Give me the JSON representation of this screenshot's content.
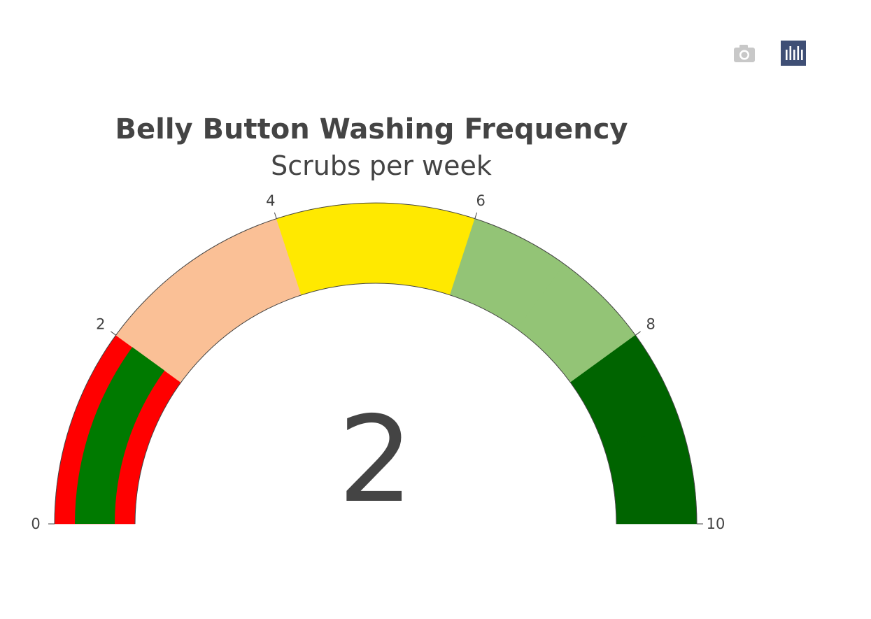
{
  "chart_data": {
    "type": "gauge",
    "title": "Belly Button Washing Frequency",
    "subtitle": "Scrubs per week",
    "value": 2,
    "value_label": "2",
    "range": [
      0,
      10
    ],
    "tick_labels": [
      "0",
      "2",
      "4",
      "6",
      "8",
      "10"
    ],
    "tick_values": [
      0,
      2,
      4,
      6,
      8,
      10
    ],
    "steps": [
      {
        "range": [
          0,
          1
        ],
        "color": "#ff0000"
      },
      {
        "range": [
          1,
          2
        ],
        "color": "#ff0000"
      },
      {
        "range": [
          2,
          3
        ],
        "color": "#fac096"
      },
      {
        "range": [
          3,
          4
        ],
        "color": "#fac096"
      },
      {
        "range": [
          4,
          6
        ],
        "color": "#ffe900"
      },
      {
        "range": [
          6,
          7
        ],
        "color": "#93c476"
      },
      {
        "range": [
          7,
          8
        ],
        "color": "#93c476"
      },
      {
        "range": [
          8,
          9
        ],
        "color": "#006400"
      },
      {
        "range": [
          9,
          10
        ],
        "color": "#006400"
      }
    ],
    "bar": {
      "range": [
        0,
        2
      ],
      "color": "#007a00"
    }
  },
  "modebar": {
    "icons": [
      "camera-icon",
      "plotly-logo-icon"
    ],
    "logo_color": "#3f4f75",
    "camera_color": "#c8c8c8"
  }
}
